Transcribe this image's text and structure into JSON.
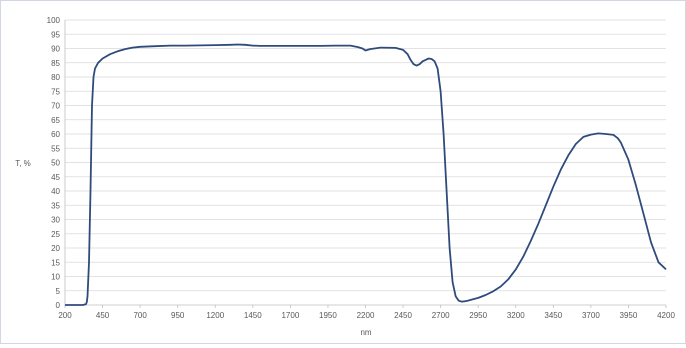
{
  "chart_data": {
    "type": "line",
    "title": "",
    "xlabel": "nm",
    "ylabel": "T, %",
    "xlim": [
      200,
      4200
    ],
    "ylim": [
      0,
      100
    ],
    "xticks": [
      "200",
      "450",
      "700",
      "950",
      "1200",
      "1450",
      "1700",
      "1950",
      "2200",
      "2450",
      "2700",
      "2950",
      "3200",
      "3450",
      "3700",
      "3950",
      "4200"
    ],
    "yticks": [
      "0",
      "5",
      "10",
      "15",
      "20",
      "25",
      "30",
      "35",
      "40",
      "45",
      "50",
      "55",
      "60",
      "65",
      "70",
      "75",
      "80",
      "85",
      "90",
      "95",
      "100"
    ],
    "grid": "horizontal",
    "legend": "none",
    "line_color": "#2f4b7c",
    "grid_color": "#d9d9d9",
    "series": [
      {
        "x": [
          200,
          320,
          340,
          345,
          350,
          360,
          370,
          380,
          390,
          400,
          420,
          450,
          500,
          550,
          600,
          650,
          700,
          800,
          900,
          1000,
          1100,
          1200,
          1300,
          1350,
          1400,
          1450,
          1500,
          1600,
          1700,
          1800,
          1900,
          2000,
          2100,
          2150,
          2180,
          2200,
          2230,
          2300,
          2400,
          2450,
          2480,
          2500,
          2520,
          2540,
          2560,
          2580,
          2600,
          2620,
          2640,
          2660,
          2680,
          2700,
          2720,
          2740,
          2760,
          2780,
          2800,
          2820,
          2840,
          2860,
          2880,
          2900,
          2950,
          3000,
          3050,
          3100,
          3150,
          3200,
          3250,
          3300,
          3350,
          3400,
          3450,
          3500,
          3550,
          3600,
          3650,
          3700,
          3750,
          3800,
          3850,
          3880,
          3900,
          3950,
          4000,
          4050,
          4100,
          4150,
          4200
        ],
        "values": [
          0,
          0,
          0.3,
          1,
          3,
          15,
          40,
          70,
          80,
          83,
          85,
          86.5,
          88,
          89,
          89.8,
          90.3,
          90.6,
          90.8,
          91,
          91,
          91.1,
          91.2,
          91.3,
          91.4,
          91.3,
          91,
          90.9,
          90.9,
          90.9,
          90.9,
          90.9,
          91,
          91,
          90.5,
          90,
          89.3,
          89.8,
          90.3,
          90.2,
          89.5,
          88,
          86,
          84.5,
          84,
          84.5,
          85.5,
          86,
          86.5,
          86.3,
          85.5,
          83,
          75,
          60,
          40,
          20,
          8,
          3,
          1.5,
          1.2,
          1.3,
          1.5,
          1.8,
          2.5,
          3.5,
          4.8,
          6.5,
          9,
          12.5,
          17,
          22.5,
          28.5,
          35,
          41.5,
          47.5,
          52.5,
          56.5,
          59,
          59.8,
          60.2,
          60,
          59.7,
          58.5,
          57,
          51,
          42,
          32,
          22,
          15,
          12.5
        ]
      }
    ]
  }
}
